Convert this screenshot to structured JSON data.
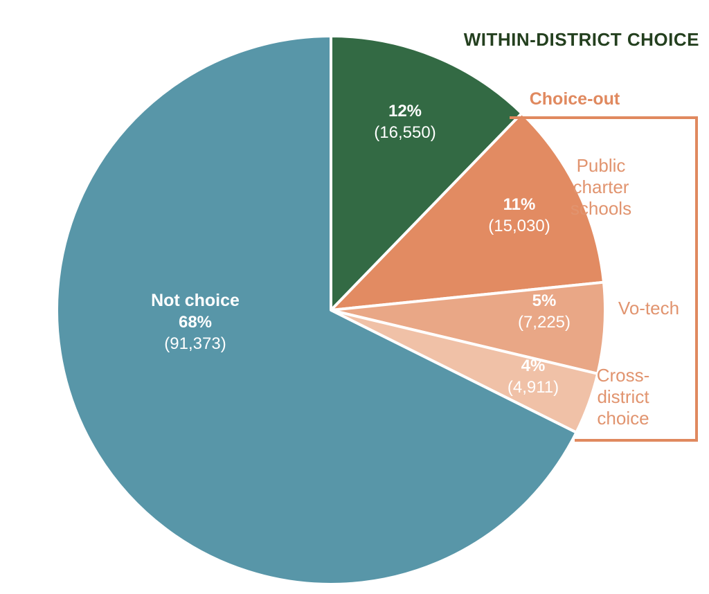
{
  "chart_data": {
    "type": "pie",
    "header": "WITHIN-DISTRICT CHOICE",
    "group_label": "Choice-out",
    "slices": [
      {
        "name": "",
        "percent_label": "12%",
        "count_label": "(16,550)",
        "value": 16550,
        "color": "#336a44"
      },
      {
        "name": "Public charter schools",
        "name_lines": [
          "Public",
          "charter",
          "schools"
        ],
        "percent_label": "11%",
        "count_label": "(15,030)",
        "value": 15030,
        "color": "#e28b62"
      },
      {
        "name": "Vo-tech",
        "name_lines": [
          "Vo-tech"
        ],
        "percent_label": "5%",
        "count_label": "(7,225)",
        "value": 7225,
        "color": "#e9a786"
      },
      {
        "name": "Cross-district choice",
        "name_lines": [
          "Cross-",
          "district",
          "choice"
        ],
        "percent_label": "4%",
        "count_label": "(4,911)",
        "value": 4911,
        "color": "#f0c1a7"
      },
      {
        "name": "Not choice",
        "name_lines": [
          "Not choice"
        ],
        "percent_label": "68%",
        "count_label": "(91,373)",
        "value": 91373,
        "color": "#5896a8"
      }
    ],
    "colors": {
      "header": "#24401f",
      "group": "#e0895f",
      "side_text": "#e1946f",
      "bracket": "#e0895f"
    }
  }
}
